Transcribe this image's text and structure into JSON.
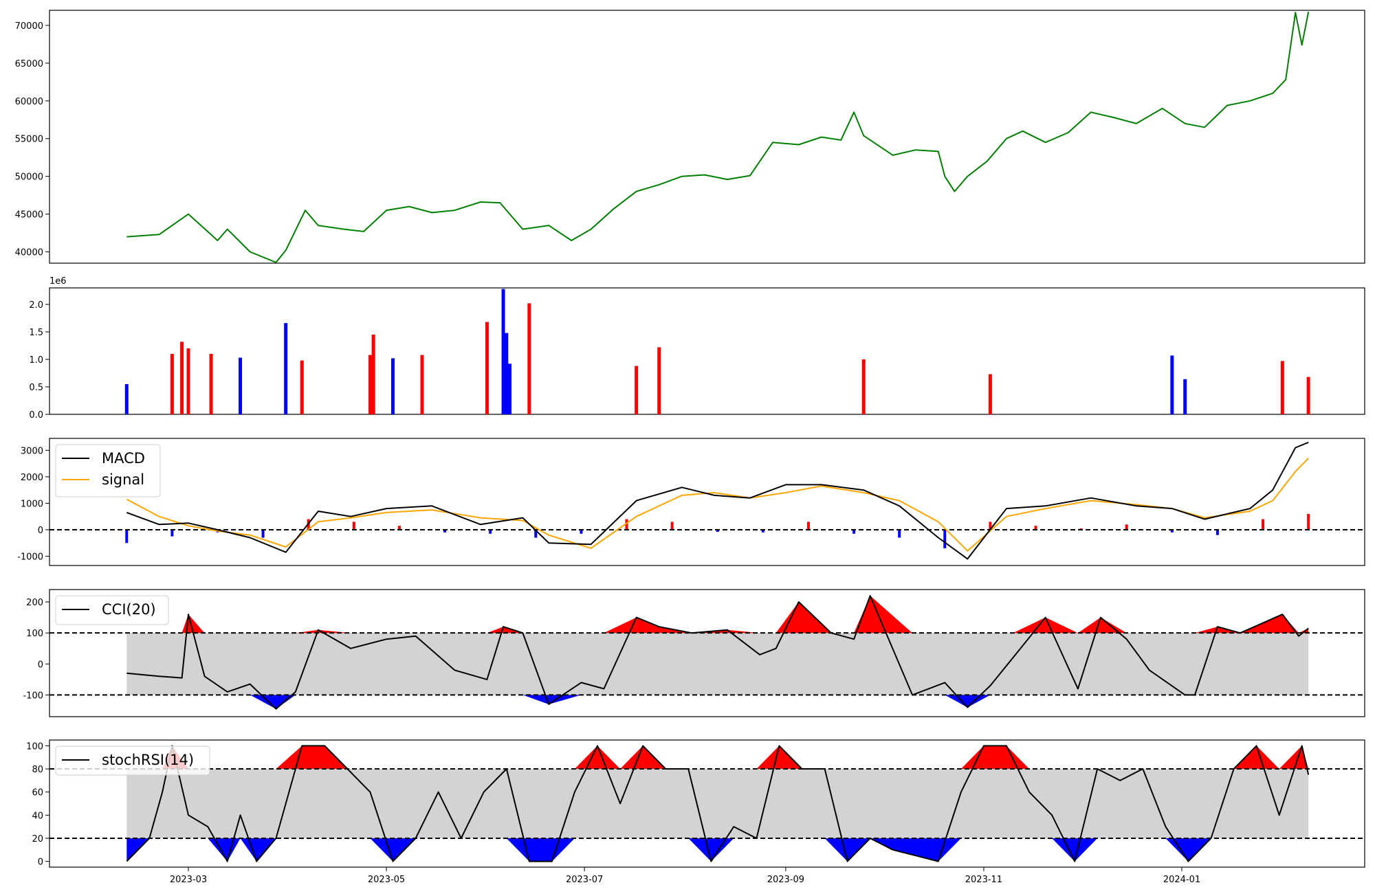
{
  "chart_data": [
    {
      "panel": "price",
      "type": "line",
      "x_range": [
        "2023-02-10",
        "2024-02-09"
      ],
      "ylim": [
        38500,
        72000
      ],
      "yticks": [
        40000,
        45000,
        50000,
        55000,
        60000,
        65000,
        70000
      ],
      "xticks": [
        "2023-03",
        "2023-05",
        "2023-07",
        "2023-09",
        "2023-11",
        "2024-01"
      ],
      "colors": {
        "line": "#008000"
      },
      "series": [
        {
          "x": [
            "2023-02-10",
            "2023-02-20",
            "2023-03-01",
            "2023-03-10",
            "2023-03-13",
            "2023-03-20",
            "2023-03-28",
            "2023-03-31",
            "2023-04-06",
            "2023-04-10",
            "2023-04-18",
            "2023-04-24",
            "2023-05-01",
            "2023-05-08",
            "2023-05-15",
            "2023-05-22",
            "2023-05-30",
            "2023-06-05",
            "2023-06-12",
            "2023-06-20",
            "2023-06-27",
            "2023-07-03",
            "2023-07-10",
            "2023-07-17",
            "2023-07-24",
            "2023-07-31",
            "2023-08-07",
            "2023-08-14",
            "2023-08-21",
            "2023-08-28",
            "2023-09-05",
            "2023-09-12",
            "2023-09-18",
            "2023-09-22",
            "2023-09-25",
            "2023-10-04",
            "2023-10-11",
            "2023-10-18",
            "2023-10-20",
            "2023-10-23",
            "2023-10-27",
            "2023-11-02",
            "2023-11-08",
            "2023-11-13",
            "2023-11-20",
            "2023-11-27",
            "2023-12-04",
            "2023-12-11",
            "2023-12-18",
            "2023-12-26",
            "2024-01-02",
            "2024-01-08",
            "2024-01-15",
            "2024-01-22",
            "2024-01-29",
            "2024-02-02",
            "2024-02-05",
            "2024-02-07",
            "2024-02-09"
          ],
          "values": [
            42000,
            42300,
            45000,
            41500,
            43000,
            40000,
            38600,
            40200,
            45500,
            43500,
            43000,
            42700,
            45500,
            46000,
            45200,
            45500,
            46600,
            46500,
            43000,
            43500,
            41500,
            43000,
            45700,
            48000,
            48900,
            50000,
            50200,
            49600,
            50100,
            54500,
            54200,
            55200,
            54800,
            58500,
            55400,
            52800,
            53500,
            53300,
            50000,
            48000,
            50000,
            52000,
            55000,
            56000,
            54500,
            55800,
            58500,
            57800,
            57000,
            59000,
            57000,
            56500,
            59400,
            60000,
            61000,
            62800,
            71700,
            67400,
            71800
          ]
        }
      ]
    },
    {
      "panel": "volume",
      "type": "bar",
      "x_range": [
        "2023-02-10",
        "2024-02-09"
      ],
      "ylim": [
        0,
        2300000
      ],
      "yticks": [
        0,
        500000,
        1000000,
        1500000,
        2000000
      ],
      "ytick_labels": [
        "0.0",
        "0.5",
        "1.0",
        "1.5",
        "2.0"
      ],
      "scale_label": "1e6",
      "colors": {
        "up": "#ff0000",
        "down": "#0000ff",
        "flat": "#000000"
      },
      "series": [
        {
          "dates": [
            "2023-02-10",
            "2023-02-24",
            "2023-02-27",
            "2023-03-01",
            "2023-03-08",
            "2023-03-17",
            "2023-03-31",
            "2023-04-05",
            "2023-04-26",
            "2023-04-27",
            "2023-05-03",
            "2023-05-12",
            "2023-06-01",
            "2023-06-06",
            "2023-06-07",
            "2023-06-08",
            "2023-06-14",
            "2023-07-17",
            "2023-07-24",
            "2023-09-25",
            "2023-11-03",
            "2023-12-29",
            "2024-01-02",
            "2024-02-01",
            "2024-02-09"
          ],
          "values": [
            550000,
            1100000,
            1320000,
            1200000,
            1100000,
            1030000,
            1660000,
            980000,
            1080000,
            1450000,
            1020000,
            1080000,
            1680000,
            2280000,
            1480000,
            920000,
            2020000,
            880000,
            1220000,
            1000000,
            730000,
            1070000,
            640000,
            970000,
            680000
          ],
          "direction": [
            "down",
            "up",
            "up",
            "up",
            "up",
            "down",
            "down",
            "up",
            "up",
            "up",
            "down",
            "up",
            "up",
            "down",
            "down",
            "down",
            "up",
            "up",
            "up",
            "up",
            "up",
            "down",
            "down",
            "up",
            "up"
          ]
        }
      ]
    },
    {
      "panel": "macd",
      "type": "line",
      "ylim": [
        -1350,
        3450
      ],
      "yticks": [
        -1000,
        0,
        1000,
        2000,
        3000
      ],
      "legend": "top-left",
      "colors": {
        "macd": "#000000",
        "signal": "#ffa500",
        "hist_up": "#ff0000",
        "hist_down": "#0000ff"
      },
      "reference_line": 0,
      "series": [
        {
          "name": "MACD",
          "x": [
            "2023-02-10",
            "2023-02-20",
            "2023-03-01",
            "2023-03-10",
            "2023-03-20",
            "2023-03-31",
            "2023-04-10",
            "2023-04-20",
            "2023-05-01",
            "2023-05-15",
            "2023-05-30",
            "2023-06-12",
            "2023-06-20",
            "2023-07-03",
            "2023-07-17",
            "2023-07-31",
            "2023-08-10",
            "2023-08-21",
            "2023-09-01",
            "2023-09-12",
            "2023-09-25",
            "2023-10-06",
            "2023-10-18",
            "2023-10-27",
            "2023-11-08",
            "2023-11-20",
            "2023-12-04",
            "2023-12-18",
            "2023-12-29",
            "2024-01-08",
            "2024-01-22",
            "2024-01-29",
            "2024-02-05",
            "2024-02-09"
          ],
          "values": [
            650,
            200,
            250,
            0,
            -300,
            -850,
            700,
            500,
            800,
            900,
            200,
            450,
            -500,
            -550,
            1100,
            1600,
            1300,
            1200,
            1700,
            1700,
            1500,
            900,
            -300,
            -1100,
            800,
            900,
            1200,
            900,
            800,
            400,
            800,
            1500,
            3100,
            3300
          ]
        },
        {
          "name": "signal",
          "x": [
            "2023-02-10",
            "2023-02-20",
            "2023-03-01",
            "2023-03-10",
            "2023-03-20",
            "2023-03-31",
            "2023-04-10",
            "2023-04-20",
            "2023-05-01",
            "2023-05-15",
            "2023-05-30",
            "2023-06-12",
            "2023-06-20",
            "2023-07-03",
            "2023-07-17",
            "2023-07-31",
            "2023-08-10",
            "2023-08-21",
            "2023-09-01",
            "2023-09-12",
            "2023-09-25",
            "2023-10-06",
            "2023-10-18",
            "2023-10-27",
            "2023-11-08",
            "2023-11-20",
            "2023-12-04",
            "2023-12-18",
            "2023-12-29",
            "2024-01-08",
            "2024-01-22",
            "2024-01-29",
            "2024-02-05",
            "2024-02-09"
          ],
          "values": [
            1150,
            500,
            150,
            -50,
            -200,
            -650,
            300,
            450,
            650,
            750,
            450,
            350,
            -200,
            -700,
            500,
            1300,
            1400,
            1200,
            1400,
            1650,
            1400,
            1100,
            300,
            -800,
            500,
            800,
            1100,
            950,
            800,
            450,
            700,
            1100,
            2200,
            2700
          ]
        }
      ],
      "histogram": {
        "x": [
          "2023-02-10",
          "2023-02-24",
          "2023-03-10",
          "2023-03-24",
          "2023-04-07",
          "2023-04-21",
          "2023-05-05",
          "2023-05-19",
          "2023-06-02",
          "2023-06-16",
          "2023-06-30",
          "2023-07-14",
          "2023-07-28",
          "2023-08-11",
          "2023-08-25",
          "2023-09-08",
          "2023-09-22",
          "2023-10-06",
          "2023-10-20",
          "2023-11-03",
          "2023-11-17",
          "2023-12-01",
          "2023-12-15",
          "2023-12-29",
          "2024-01-12",
          "2024-01-26",
          "2024-02-09"
        ],
        "values": [
          -500,
          -250,
          -100,
          -300,
          400,
          300,
          150,
          -100,
          -150,
          -300,
          -150,
          400,
          300,
          -80,
          -100,
          300,
          -150,
          -300,
          -700,
          300,
          150,
          50,
          200,
          -100,
          -200,
          400,
          600
        ]
      }
    },
    {
      "panel": "cci",
      "type": "line",
      "ylim": [
        -170,
        240
      ],
      "yticks": [
        -100,
        0,
        100,
        200
      ],
      "legend": "top-left",
      "reference_lines": [
        -100,
        100
      ],
      "colors": {
        "line": "#000000",
        "band": "#d3d3d3",
        "above": "#ff0000",
        "below": "#0000ff"
      },
      "series": [
        {
          "name": "CCI(20)",
          "x": [
            "2023-02-10",
            "2023-02-20",
            "2023-02-27",
            "2023-03-01",
            "2023-03-06",
            "2023-03-13",
            "2023-03-20",
            "2023-03-28",
            "2023-04-03",
            "2023-04-10",
            "2023-04-20",
            "2023-05-01",
            "2023-05-10",
            "2023-05-22",
            "2023-06-01",
            "2023-06-06",
            "2023-06-12",
            "2023-06-20",
            "2023-06-30",
            "2023-07-07",
            "2023-07-17",
            "2023-07-24",
            "2023-08-03",
            "2023-08-14",
            "2023-08-24",
            "2023-08-29",
            "2023-09-05",
            "2023-09-15",
            "2023-09-22",
            "2023-09-27",
            "2023-10-10",
            "2023-10-20",
            "2023-10-27",
            "2023-11-03",
            "2023-11-10",
            "2023-11-20",
            "2023-11-30",
            "2023-12-07",
            "2023-12-15",
            "2023-12-22",
            "2024-01-02",
            "2024-01-05",
            "2024-01-12",
            "2024-01-19",
            "2024-02-01",
            "2024-02-06",
            "2024-02-09"
          ],
          "values": [
            -30,
            -40,
            -45,
            160,
            -40,
            -90,
            -65,
            -145,
            -90,
            110,
            50,
            80,
            90,
            -20,
            -50,
            120,
            100,
            -130,
            -60,
            -80,
            150,
            120,
            100,
            110,
            30,
            50,
            200,
            100,
            80,
            220,
            -100,
            -60,
            -140,
            -70,
            20,
            150,
            -80,
            150,
            80,
            -20,
            -100,
            -100,
            120,
            100,
            160,
            90,
            115
          ]
        }
      ]
    },
    {
      "panel": "stochrsi",
      "type": "line",
      "ylim": [
        -5,
        105
      ],
      "yticks": [
        0,
        20,
        40,
        60,
        80,
        100
      ],
      "legend": "top-left",
      "reference_lines": [
        20,
        80
      ],
      "colors": {
        "line": "#000000",
        "band": "#d3d3d3",
        "above": "#ff0000",
        "below": "#0000ff"
      },
      "series": [
        {
          "name": "stochRSI(14)",
          "x": [
            "2023-02-10",
            "2023-02-17",
            "2023-02-21",
            "2023-02-24",
            "2023-03-01",
            "2023-03-07",
            "2023-03-13",
            "2023-03-17",
            "2023-03-22",
            "2023-03-28",
            "2023-04-05",
            "2023-04-12",
            "2023-04-19",
            "2023-04-26",
            "2023-05-03",
            "2023-05-10",
            "2023-05-17",
            "2023-05-24",
            "2023-05-31",
            "2023-06-07",
            "2023-06-14",
            "2023-06-21",
            "2023-06-28",
            "2023-07-05",
            "2023-07-12",
            "2023-07-19",
            "2023-07-26",
            "2023-08-02",
            "2023-08-09",
            "2023-08-16",
            "2023-08-23",
            "2023-08-30",
            "2023-09-06",
            "2023-09-13",
            "2023-09-20",
            "2023-09-27",
            "2023-10-04",
            "2023-10-11",
            "2023-10-18",
            "2023-10-25",
            "2023-11-01",
            "2023-11-08",
            "2023-11-15",
            "2023-11-22",
            "2023-11-29",
            "2023-12-06",
            "2023-12-13",
            "2023-12-20",
            "2023-12-27",
            "2024-01-03",
            "2024-01-10",
            "2024-01-17",
            "2024-01-24",
            "2024-01-31",
            "2024-02-07",
            "2024-02-09"
          ],
          "values": [
            0,
            20,
            60,
            100,
            40,
            30,
            0,
            40,
            0,
            20,
            100,
            100,
            80,
            60,
            0,
            20,
            60,
            20,
            60,
            80,
            0,
            0,
            60,
            100,
            50,
            100,
            80,
            80,
            0,
            30,
            20,
            100,
            80,
            80,
            0,
            20,
            10,
            5,
            0,
            60,
            100,
            100,
            60,
            40,
            0,
            80,
            70,
            80,
            30,
            0,
            20,
            80,
            100,
            40,
            100,
            75
          ]
        }
      ]
    }
  ]
}
